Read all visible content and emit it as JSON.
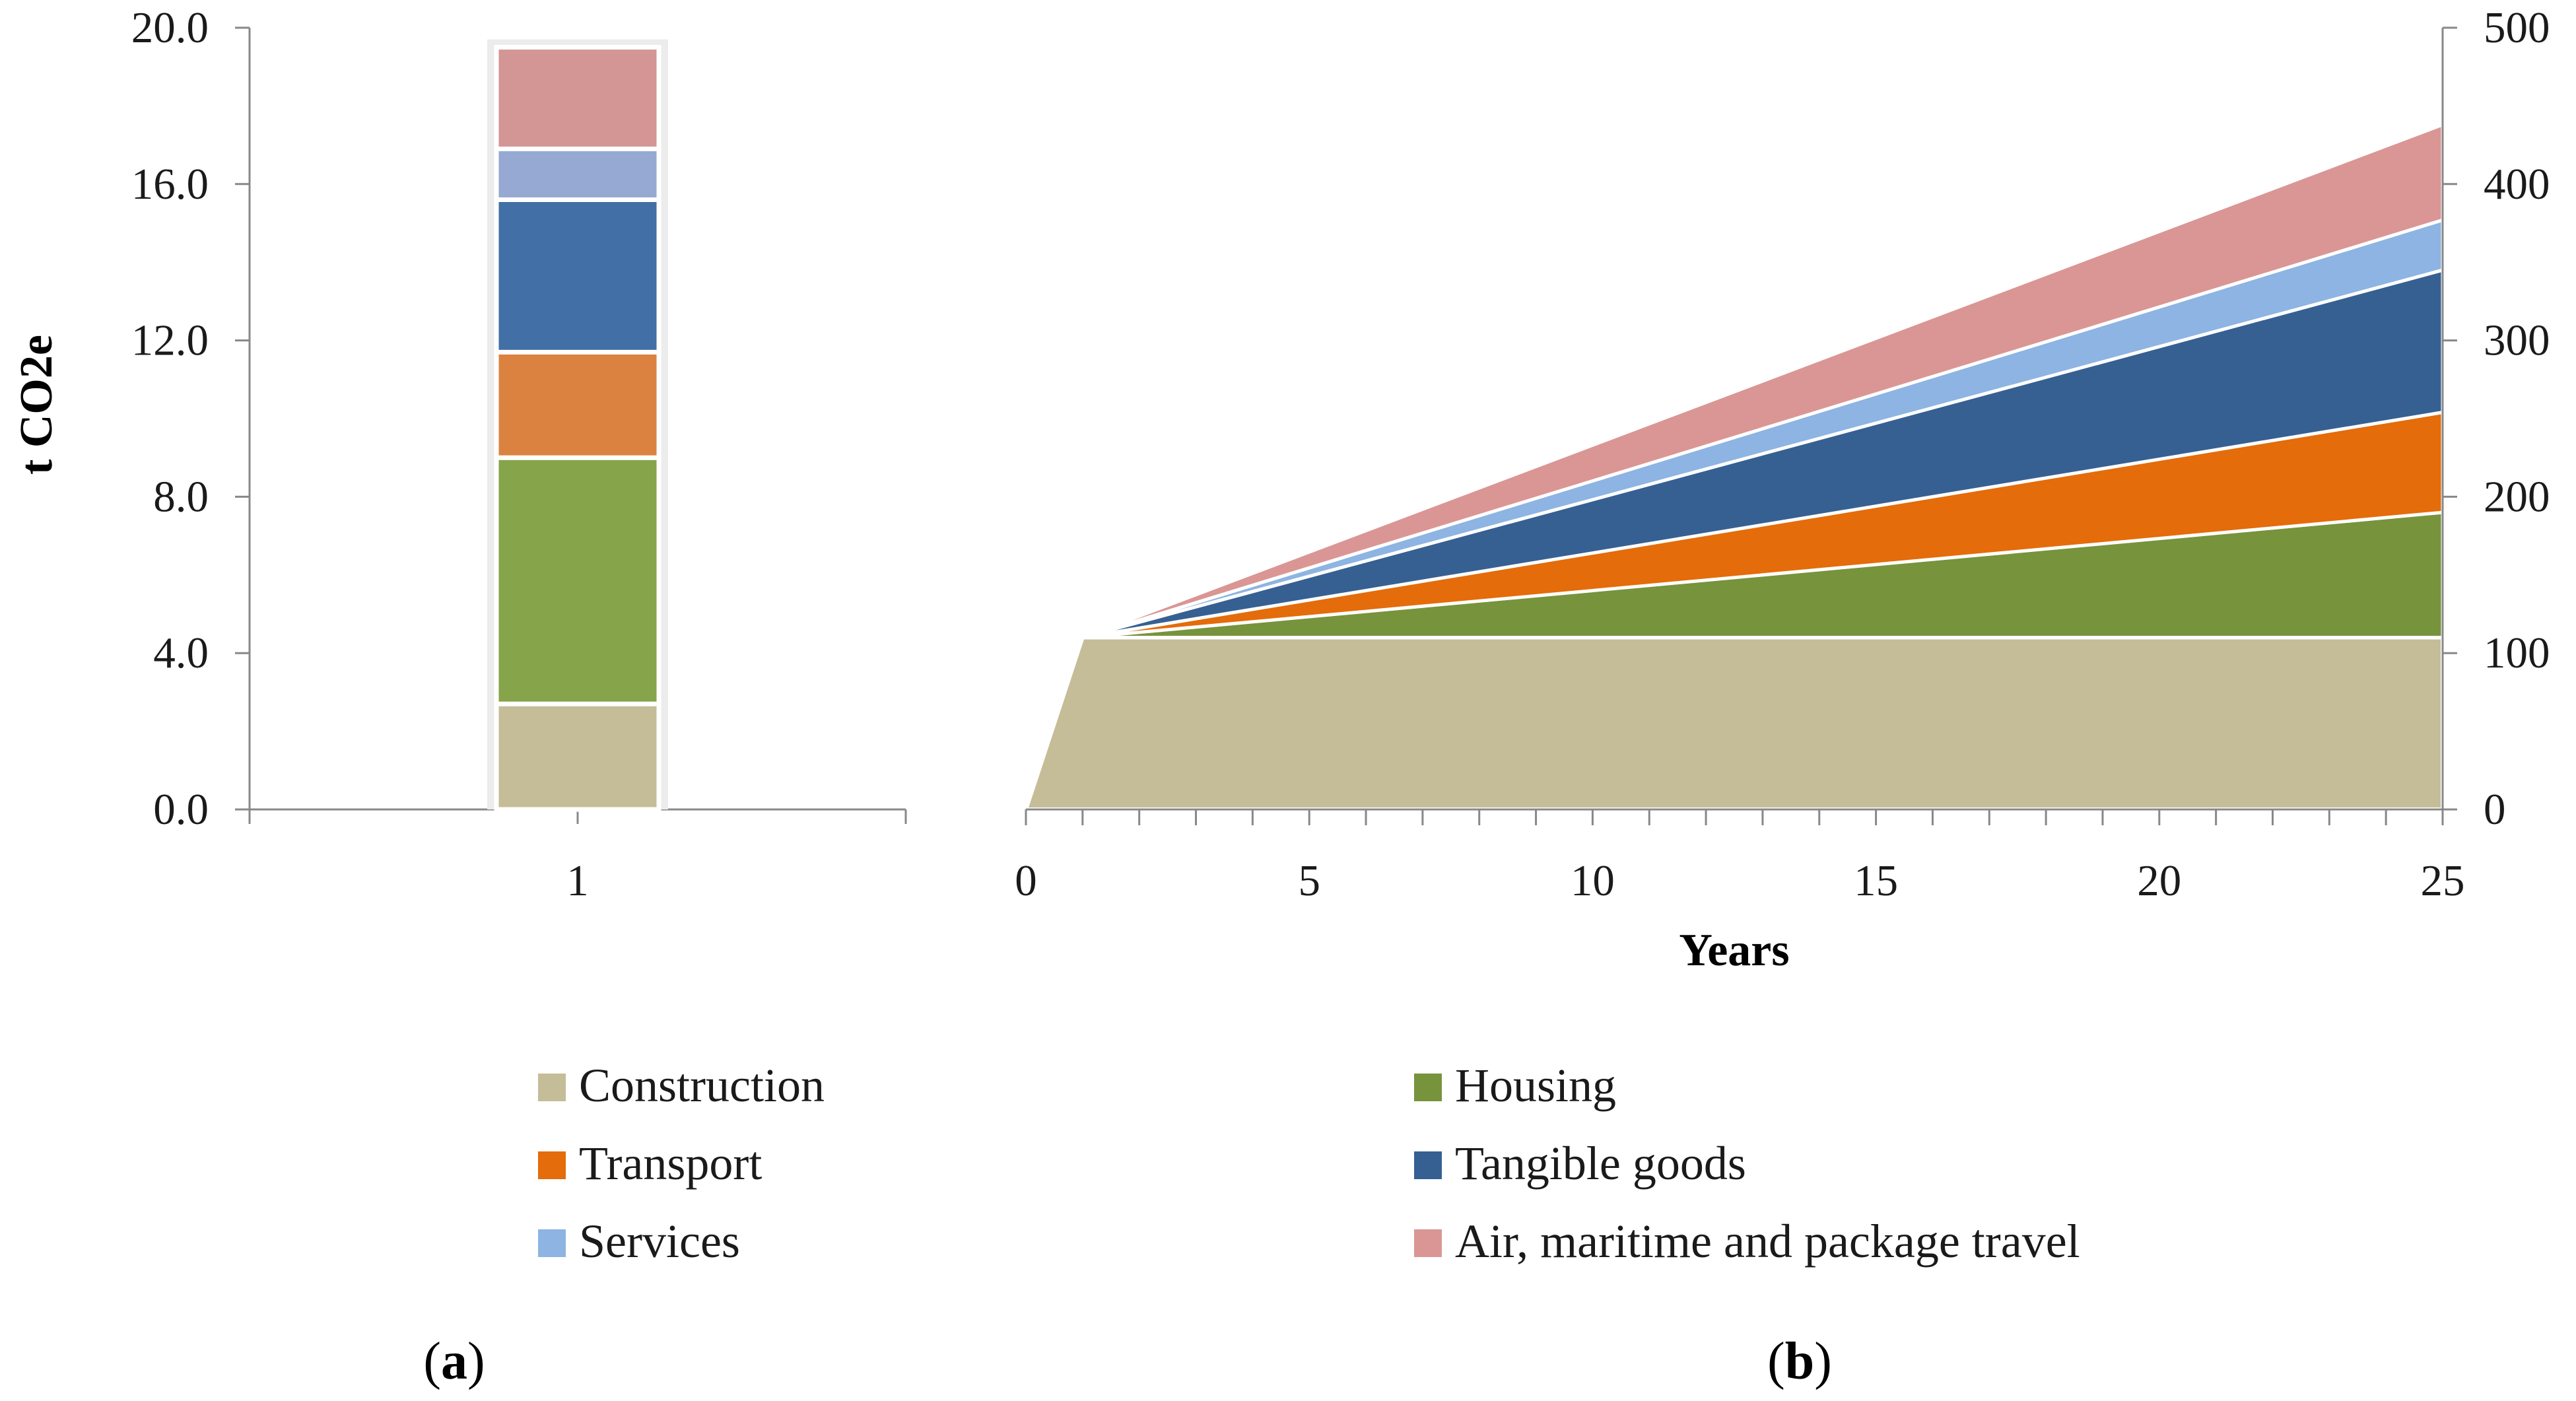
{
  "chart_data": [
    {
      "panel_label": "a",
      "type": "bar",
      "stacked": true,
      "categories": [
        "1"
      ],
      "ylabel": "t CO2e",
      "xlabel": "",
      "ylim": [
        0,
        20
      ],
      "yticks": [
        "0.0",
        "4.0",
        "8.0",
        "12.0",
        "16.0",
        "20.0"
      ],
      "series": [
        {
          "name": "Construction",
          "color": "#c4bd97",
          "values": [
            2.7
          ]
        },
        {
          "name": "Housing",
          "color": "#86a44a",
          "values": [
            6.3
          ]
        },
        {
          "name": "Transport",
          "color": "#dc8240",
          "values": [
            2.7
          ]
        },
        {
          "name": "Tangible goods",
          "color": "#426fa6",
          "values": [
            3.9
          ]
        },
        {
          "name": "Services",
          "color": "#95a9d2",
          "values": [
            1.3
          ]
        },
        {
          "name": "Air, maritime and package travel",
          "color": "#d49595",
          "values": [
            2.6
          ]
        }
      ],
      "legend": "bottom"
    },
    {
      "panel_label": "b",
      "type": "area",
      "stacked": true,
      "xlabel": "Years",
      "ylabel": "",
      "xlim": [
        0,
        25
      ],
      "ylim": [
        0,
        500
      ],
      "xticks": [
        "0",
        "5",
        "10",
        "15",
        "20",
        "25"
      ],
      "yticks": [
        "0",
        "100",
        "200",
        "300",
        "400",
        "500"
      ],
      "y_axis_side": "right",
      "x": [
        0,
        1,
        25
      ],
      "series": [
        {
          "name": "Construction",
          "color": "#c4bd97",
          "values": [
            0,
            110,
            110
          ]
        },
        {
          "name": "Housing",
          "color": "#77933c",
          "values": [
            0,
            0,
            80
          ]
        },
        {
          "name": "Transport",
          "color": "#e46c0a",
          "values": [
            0,
            0,
            64
          ]
        },
        {
          "name": "Tangible goods",
          "color": "#366092",
          "values": [
            0,
            0,
            91
          ]
        },
        {
          "name": "Services",
          "color": "#8db4e2",
          "values": [
            0,
            0,
            32
          ]
        },
        {
          "name": "Air, maritime and package travel",
          "color": "#da9694",
          "values": [
            0,
            0,
            61
          ]
        }
      ]
    }
  ],
  "legend": [
    {
      "label": "Construction",
      "color": "#c4bd97"
    },
    {
      "label": "Housing",
      "color": "#77933c"
    },
    {
      "label": "Transport",
      "color": "#e46c0a"
    },
    {
      "label": "Tangible goods",
      "color": "#366092"
    },
    {
      "label": "Services",
      "color": "#8db4e2"
    },
    {
      "label": "Air, maritime and package travel",
      "color": "#da9694"
    }
  ]
}
